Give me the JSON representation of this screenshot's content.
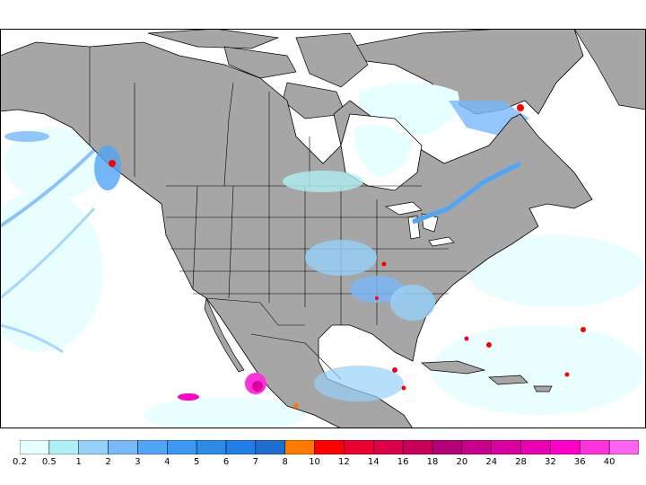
{
  "map": {
    "colors": {
      "land": "#a6a6a6",
      "ocean": "#ffffff",
      "border": "#000000"
    }
  },
  "legend": {
    "bins": [
      {
        "label": "0.2",
        "color": "#e6ffff"
      },
      {
        "label": "0.5",
        "color": "#b0f0f5"
      },
      {
        "label": "1",
        "color": "#96d2fa"
      },
      {
        "label": "2",
        "color": "#78b9fa"
      },
      {
        "label": "3",
        "color": "#50a5f5"
      },
      {
        "label": "4",
        "color": "#3c97f5"
      },
      {
        "label": "5",
        "color": "#2d8ae6"
      },
      {
        "label": "6",
        "color": "#237de6"
      },
      {
        "label": "7",
        "color": "#1e6ed2"
      },
      {
        "label": "8",
        "color": "#ff7800"
      },
      {
        "label": "10",
        "color": "#ff0000"
      },
      {
        "label": "12",
        "color": "#eb0032"
      },
      {
        "label": "14",
        "color": "#dc0046"
      },
      {
        "label": "16",
        "color": "#c8005a"
      },
      {
        "label": "18",
        "color": "#b40078"
      },
      {
        "label": "20",
        "color": "#c8008c"
      },
      {
        "label": "24",
        "color": "#dc00a0"
      },
      {
        "label": "28",
        "color": "#eb00b4"
      },
      {
        "label": "32",
        "color": "#ff00c8"
      },
      {
        "label": "36",
        "color": "#ff32dc"
      },
      {
        "label": "40",
        "color": "#ff64f0"
      }
    ]
  }
}
